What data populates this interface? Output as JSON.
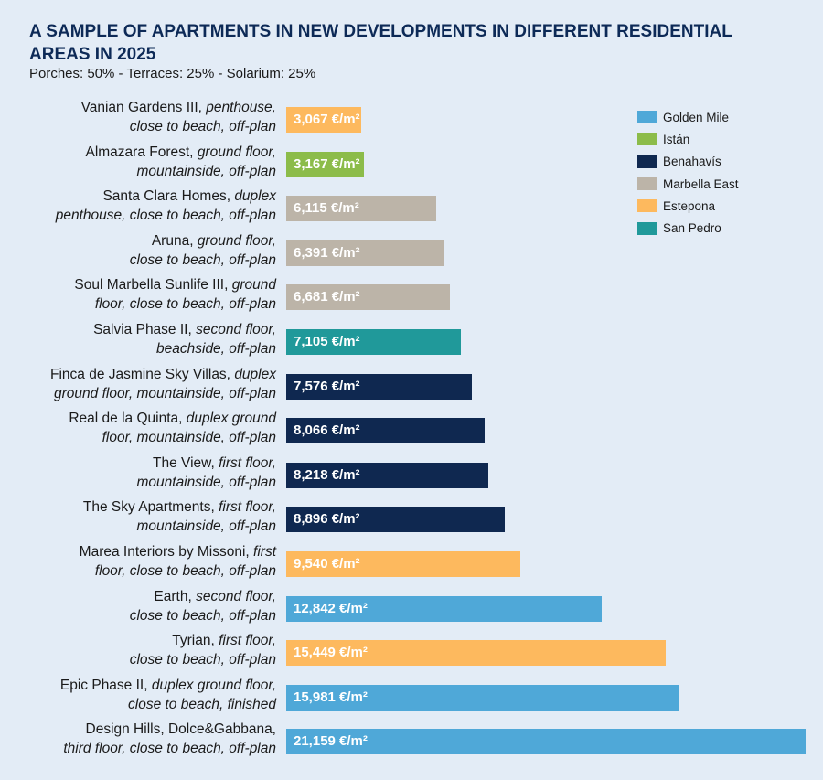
{
  "chart_data": {
    "type": "bar",
    "orientation": "horizontal",
    "title": "A SAMPLE OF APARTMENTS IN NEW DEVELOPMENTS IN DIFFERENT RESIDENTIAL AREAS IN 2025",
    "subtitle": "Porches: 50% - Terraces: 25% - Solarium: 25%",
    "xlim": [
      0,
      21159
    ],
    "grid": false,
    "legend_position": "top-right",
    "legend": [
      {
        "name": "Golden Mile",
        "color": "#4fa8d8"
      },
      {
        "name": "Istán",
        "color": "#8cbc4a"
      },
      {
        "name": "Benahavís",
        "color": "#0f2850"
      },
      {
        "name": "Marbella East",
        "color": "#bcb4a8"
      },
      {
        "name": "Estepona",
        "color": "#fdb95e"
      },
      {
        "name": "San Pedro",
        "color": "#20999a"
      }
    ],
    "rows": [
      {
        "name": "Vanian Gardens III,",
        "detail1": "penthouse,",
        "detail2": "close to beach, off-plan",
        "value": 3067,
        "label": "3,067 €/m²",
        "area": "Estepona"
      },
      {
        "name": "Almazara Forest,",
        "detail1": "ground floor,",
        "detail2": "mountainside, off-plan",
        "value": 3167,
        "label": "3,167 €/m²",
        "area": "Istán"
      },
      {
        "name": "Santa Clara Homes,",
        "detail1": "duplex",
        "detail2": "penthouse, close to beach, off-plan",
        "value": 6115,
        "label": "6,115 €/m²",
        "area": "Marbella East"
      },
      {
        "name": "Aruna,",
        "detail1": "ground floor,",
        "detail2": "close to beach, off-plan",
        "value": 6391,
        "label": "6,391 €/m²",
        "area": "Marbella East"
      },
      {
        "name": "Soul Marbella Sunlife III,",
        "detail1": "ground",
        "detail2": "floor, close to beach, off-plan",
        "value": 6681,
        "label": "6,681 €/m²",
        "area": "Marbella East"
      },
      {
        "name": "Salvia Phase II,",
        "detail1": "second floor,",
        "detail2": "beachside, off-plan",
        "value": 7105,
        "label": "7,105 €/m²",
        "area": "San Pedro"
      },
      {
        "name": "Finca de Jasmine Sky Villas,",
        "detail1": "duplex",
        "detail2": "ground floor, mountainside, off-plan",
        "value": 7576,
        "label": "7,576 €/m²",
        "area": "Benahavís"
      },
      {
        "name": "Real de la Quinta,",
        "detail1": "duplex ground",
        "detail2": "floor, mountainside, off-plan",
        "value": 8066,
        "label": "8,066 €/m²",
        "area": "Benahavís"
      },
      {
        "name": "The View,",
        "detail1": "first floor,",
        "detail2": "mountainside, off-plan",
        "value": 8218,
        "label": "8,218 €/m²",
        "area": "Benahavís"
      },
      {
        "name": "The Sky Apartments,",
        "detail1": "first floor,",
        "detail2": "mountainside, off-plan",
        "value": 8896,
        "label": "8,896 €/m²",
        "area": "Benahavís"
      },
      {
        "name": "Marea Interiors by Missoni,",
        "detail1": "first",
        "detail2": "floor, close to beach, off-plan",
        "value": 9540,
        "label": "9,540 €/m²",
        "area": "Estepona"
      },
      {
        "name": "Earth,",
        "detail1": "second floor,",
        "detail2": "close to beach, off-plan",
        "value": 12842,
        "label": "12,842 €/m²",
        "area": "Golden Mile"
      },
      {
        "name": "Tyrian,",
        "detail1": "first floor,",
        "detail2": "close to beach, off-plan",
        "value": 15449,
        "label": "15,449 €/m²",
        "area": "Estepona"
      },
      {
        "name": "Epic Phase II,",
        "detail1": "duplex ground floor,",
        "detail2": "close to beach, finished",
        "value": 15981,
        "label": "15,981 €/m²",
        "area": "Golden Mile"
      },
      {
        "name": "Design Hills, Dolce&Gabbana,",
        "detail1": "",
        "detail2": "third floor, close to beach, off-plan",
        "value": 21159,
        "label": "21,159 €/m²",
        "area": "Golden Mile"
      }
    ]
  }
}
